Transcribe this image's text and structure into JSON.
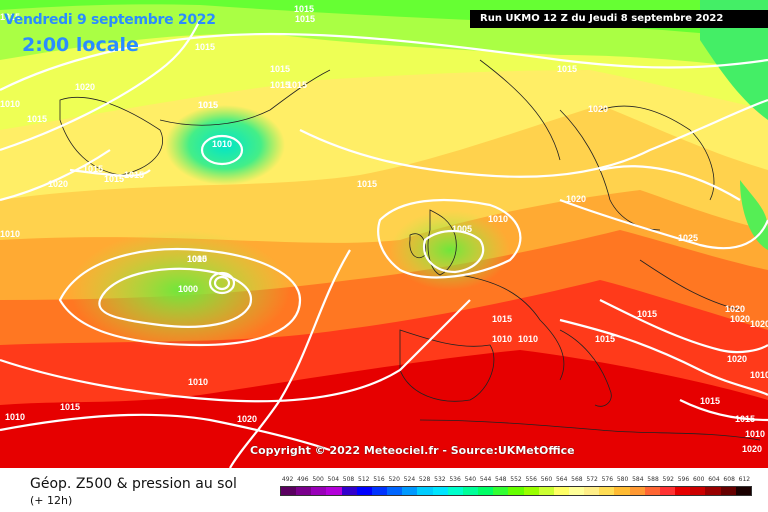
{
  "header": {
    "date": "Vendredi 9 septembre 2022",
    "local_time": "2:00 locale",
    "run": "Run UKMO 12 Z du Jeudi 8 septembre 2022"
  },
  "copyright": "Copyright © 2022 Meteociel.fr - Source:UKMetOffice",
  "isobar_labels": [
    "1015",
    "1015",
    "1015",
    "1010",
    "1020",
    "1015",
    "1015",
    "1015",
    "1010",
    "1015",
    "1015",
    "1015",
    "1010",
    "1020",
    "1020",
    "1015",
    "1015",
    "1010",
    "1020",
    "1005",
    "1010",
    "1015",
    "1015",
    "1025",
    "1005",
    "1000",
    "1015",
    "1015",
    "1010",
    "1020",
    "1015",
    "1020",
    "1020",
    "1010",
    "1010",
    "1015",
    "1020",
    "1020",
    "1010",
    "1015",
    "1015",
    "1010",
    "1020",
    "1010",
    "1015",
    "1015"
  ],
  "legend": {
    "title": "Géop. Z500 & pression au sol",
    "subtitle": "(+ 12h)",
    "ticks": [
      "492",
      "496",
      "500",
      "504",
      "508",
      "512",
      "516",
      "520",
      "524",
      "528",
      "532",
      "536",
      "540",
      "544",
      "548",
      "552",
      "556",
      "560",
      "564",
      "568",
      "572",
      "576",
      "580",
      "584",
      "588",
      "592",
      "596",
      "600",
      "604",
      "608",
      "612"
    ],
    "colors": [
      "#5a0060",
      "#7a008c",
      "#9900b8",
      "#b300d9",
      "#3300cc",
      "#0000ff",
      "#0033ff",
      "#0066ff",
      "#0099ff",
      "#00ccff",
      "#00e5ff",
      "#00ffcc",
      "#00ff99",
      "#00ff66",
      "#33ff33",
      "#66ff00",
      "#99ff00",
      "#ccff33",
      "#ffff66",
      "#ffff99",
      "#ffee88",
      "#ffdd55",
      "#ffbb33",
      "#ff9933",
      "#ff6633",
      "#ff3333",
      "#e60000",
      "#cc0000",
      "#990000",
      "#660000",
      "#1a0000"
    ]
  }
}
